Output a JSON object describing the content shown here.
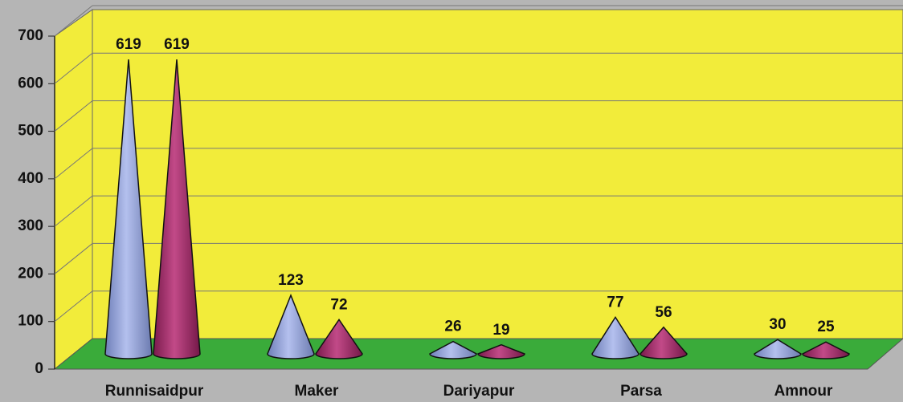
{
  "chart_data": {
    "type": "cone",
    "categories": [
      "Runnisaidpur",
      "Maker",
      "Dariyapur",
      "Parsa",
      "Amnour"
    ],
    "series": [
      {
        "color": "#8d9fd8",
        "values": [
          619,
          123,
          26,
          77,
          30
        ]
      },
      {
        "color": "#9c2a66",
        "values": [
          619,
          72,
          19,
          56,
          25
        ]
      }
    ],
    "ylim": [
      0,
      700
    ],
    "yticks": [
      0,
      100,
      200,
      300,
      400,
      500,
      600,
      700
    ],
    "grid": true
  }
}
